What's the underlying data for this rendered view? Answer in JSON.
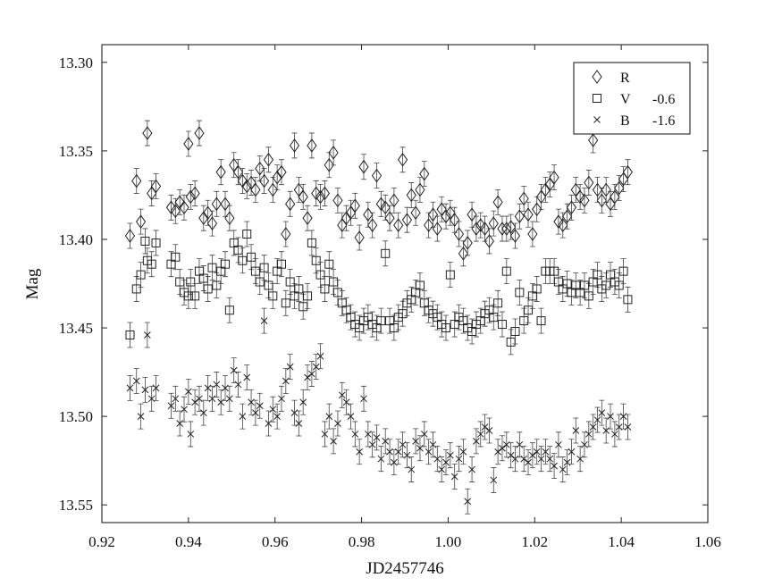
{
  "chart_data": {
    "type": "scatter",
    "xlabel": "JD2457746",
    "ylabel": "Mag",
    "xlim": [
      0.92,
      1.06
    ],
    "ylim": [
      13.56,
      13.29
    ],
    "y_inverted": true,
    "x_ticks": [
      "0.92",
      "0.94",
      "0.96",
      "0.98",
      "1.00",
      "1.02",
      "1.04",
      "1.06"
    ],
    "y_ticks": [
      "13.30",
      "13.35",
      "13.40",
      "13.45",
      "13.50",
      "13.55"
    ],
    "grid": false,
    "legend_position": "top-right",
    "legend": [
      {
        "marker": "diamond",
        "label": "R",
        "offset": ""
      },
      {
        "marker": "square",
        "label": "V",
        "offset": "-0.6"
      },
      {
        "marker": "x",
        "label": "B",
        "offset": "-1.6"
      }
    ],
    "series": [
      {
        "name": "R",
        "marker": "diamond",
        "x": [
          0.9265,
          0.928,
          0.929,
          0.9305,
          0.9315,
          0.9325,
          0.936,
          0.937,
          0.938,
          0.939,
          0.94,
          0.9405,
          0.9415,
          0.9425,
          0.9435,
          0.9445,
          0.9455,
          0.9465,
          0.9475,
          0.9485,
          0.9495,
          0.9505,
          0.9515,
          0.9525,
          0.9535,
          0.9545,
          0.9555,
          0.9565,
          0.9575,
          0.9585,
          0.9595,
          0.9605,
          0.9615,
          0.9625,
          0.9635,
          0.9645,
          0.9655,
          0.9665,
          0.9675,
          0.9685,
          0.9695,
          0.9705,
          0.9715,
          0.9725,
          0.9735,
          0.9745,
          0.9755,
          0.9765,
          0.9775,
          0.9785,
          0.9795,
          0.9805,
          0.9815,
          0.9825,
          0.9835,
          0.9845,
          0.9855,
          0.9865,
          0.9875,
          0.9885,
          0.9895,
          0.9905,
          0.9915,
          0.9925,
          0.9935,
          0.9945,
          0.9955,
          0.9965,
          0.9975,
          0.9985,
          0.9995,
          1.0005,
          1.0015,
          1.0025,
          1.0035,
          1.0045,
          1.0055,
          1.0065,
          1.0075,
          1.0085,
          1.0095,
          1.0105,
          1.0115,
          1.0125,
          1.0135,
          1.0145,
          1.0155,
          1.0165,
          1.0175,
          1.0185,
          1.0195,
          1.0205,
          1.0215,
          1.0225,
          1.0235,
          1.0245,
          1.0255,
          1.0265,
          1.0275,
          1.0285,
          1.0295,
          1.0305,
          1.0315,
          1.0325,
          1.0335,
          1.0345,
          1.0355,
          1.0365,
          1.0375,
          1.0385,
          1.0395,
          1.0405,
          1.0415
        ],
        "y": [
          13.398,
          13.367,
          13.39,
          13.34,
          13.374,
          13.37,
          13.382,
          13.384,
          13.379,
          13.382,
          13.346,
          13.376,
          13.374,
          13.34,
          13.388,
          13.385,
          13.391,
          13.38,
          13.362,
          13.38,
          13.388,
          13.358,
          13.362,
          13.367,
          13.37,
          13.368,
          13.372,
          13.36,
          13.367,
          13.355,
          13.372,
          13.365,
          13.362,
          13.397,
          13.38,
          13.347,
          13.372,
          13.376,
          13.388,
          13.347,
          13.374,
          13.376,
          13.374,
          13.358,
          13.351,
          13.378,
          13.392,
          13.388,
          13.385,
          13.381,
          13.399,
          13.359,
          13.386,
          13.392,
          13.364,
          13.38,
          13.382,
          13.388,
          13.378,
          13.392,
          13.355,
          13.389,
          13.375,
          13.385,
          13.372,
          13.363,
          13.392,
          13.386,
          13.394,
          13.383,
          13.387,
          13.385,
          13.389,
          13.397,
          13.408,
          13.402,
          13.386,
          13.394,
          13.392,
          13.394,
          13.401,
          13.391,
          13.379,
          13.394,
          13.394,
          13.393,
          13.398,
          13.387,
          13.377,
          13.386,
          13.397,
          13.383,
          13.376,
          13.372,
          13.369,
          13.365,
          13.39,
          13.392,
          13.387,
          13.382,
          13.372,
          13.376,
          13.378,
          13.368,
          13.344,
          13.372,
          13.378,
          13.372,
          13.38,
          13.376,
          13.371,
          13.366,
          13.362
        ]
      },
      {
        "name": "V",
        "marker": "square",
        "x": [
          0.9265,
          0.928,
          0.929,
          0.93,
          0.9305,
          0.9315,
          0.9325,
          0.936,
          0.937,
          0.938,
          0.939,
          0.94,
          0.9405,
          0.9415,
          0.9425,
          0.9435,
          0.9445,
          0.9455,
          0.9465,
          0.9475,
          0.9485,
          0.9495,
          0.9505,
          0.9515,
          0.9525,
          0.9535,
          0.9545,
          0.9555,
          0.9565,
          0.9575,
          0.9585,
          0.9595,
          0.9605,
          0.9615,
          0.9625,
          0.9635,
          0.9645,
          0.9655,
          0.9665,
          0.9675,
          0.9685,
          0.9695,
          0.9705,
          0.9715,
          0.9725,
          0.9735,
          0.9745,
          0.9755,
          0.9765,
          0.9775,
          0.9785,
          0.9795,
          0.9805,
          0.9815,
          0.9825,
          0.9835,
          0.9845,
          0.9855,
          0.9865,
          0.9875,
          0.9885,
          0.9895,
          0.9905,
          0.9915,
          0.9925,
          0.9935,
          0.9945,
          0.9955,
          0.9965,
          0.9975,
          0.9985,
          0.9995,
          1.0005,
          1.0015,
          1.0025,
          1.0035,
          1.0045,
          1.0055,
          1.0065,
          1.0075,
          1.0085,
          1.0095,
          1.0105,
          1.0115,
          1.0125,
          1.0135,
          1.0145,
          1.0155,
          1.0165,
          1.0175,
          1.0185,
          1.0195,
          1.0205,
          1.0215,
          1.0225,
          1.0235,
          1.0245,
          1.0255,
          1.0265,
          1.0275,
          1.0285,
          1.0295,
          1.0305,
          1.0315,
          1.0325,
          1.0335,
          1.0345,
          1.0355,
          1.0365,
          1.0375,
          1.0385,
          1.0395,
          1.0405,
          1.0415
        ],
        "y": [
          13.454,
          13.428,
          13.42,
          13.401,
          13.412,
          13.414,
          13.402,
          13.414,
          13.41,
          13.424,
          13.43,
          13.432,
          13.424,
          13.432,
          13.418,
          13.422,
          13.428,
          13.416,
          13.426,
          13.418,
          13.414,
          13.44,
          13.402,
          13.406,
          13.412,
          13.397,
          13.41,
          13.418,
          13.424,
          13.416,
          13.426,
          13.432,
          13.418,
          13.414,
          13.436,
          13.424,
          13.432,
          13.428,
          13.438,
          13.432,
          13.402,
          13.412,
          13.42,
          13.428,
          13.414,
          13.424,
          13.43,
          13.436,
          13.44,
          13.444,
          13.448,
          13.45,
          13.446,
          13.444,
          13.448,
          13.45,
          13.446,
          13.408,
          13.446,
          13.45,
          13.444,
          13.442,
          13.436,
          13.434,
          13.43,
          13.426,
          13.436,
          13.44,
          13.442,
          13.444,
          13.448,
          13.45,
          13.42,
          13.448,
          13.444,
          13.446,
          13.45,
          13.452,
          13.448,
          13.446,
          13.442,
          13.44,
          13.444,
          13.436,
          13.448,
          13.418,
          13.458,
          13.452,
          13.43,
          13.446,
          13.44,
          13.432,
          13.428,
          13.446,
          13.418,
          13.418,
          13.418,
          13.424,
          13.428,
          13.425,
          13.43,
          13.426,
          13.43,
          13.426,
          13.432,
          13.424,
          13.42,
          13.428,
          13.426,
          13.42,
          13.424,
          13.426,
          13.418,
          13.434
        ]
      },
      {
        "name": "B",
        "marker": "x",
        "x": [
          0.9265,
          0.928,
          0.929,
          0.93,
          0.9305,
          0.9315,
          0.9325,
          0.936,
          0.937,
          0.938,
          0.939,
          0.94,
          0.9405,
          0.9415,
          0.9425,
          0.9435,
          0.9445,
          0.9455,
          0.9465,
          0.9475,
          0.9485,
          0.9495,
          0.9505,
          0.9515,
          0.9525,
          0.9535,
          0.9545,
          0.9555,
          0.9565,
          0.9575,
          0.9585,
          0.9595,
          0.9605,
          0.9615,
          0.9625,
          0.9635,
          0.9645,
          0.9655,
          0.9665,
          0.9675,
          0.9685,
          0.9695,
          0.9705,
          0.9715,
          0.9725,
          0.9735,
          0.9745,
          0.9755,
          0.9765,
          0.9775,
          0.9785,
          0.9795,
          0.9805,
          0.9815,
          0.9825,
          0.9835,
          0.9845,
          0.9855,
          0.9865,
          0.9875,
          0.9885,
          0.9895,
          0.9905,
          0.9915,
          0.9925,
          0.9935,
          0.9945,
          0.9955,
          0.9965,
          0.9975,
          0.9985,
          0.9995,
          1.0005,
          1.0015,
          1.0025,
          1.0035,
          1.0045,
          1.0055,
          1.0065,
          1.0075,
          1.0085,
          1.0095,
          1.0105,
          1.0115,
          1.0125,
          1.0135,
          1.0145,
          1.0155,
          1.0165,
          1.0175,
          1.0185,
          1.0195,
          1.0205,
          1.0215,
          1.0225,
          1.0235,
          1.0245,
          1.0255,
          1.0265,
          1.0275,
          1.0285,
          1.0295,
          1.0305,
          1.0315,
          1.0325,
          1.0335,
          1.0345,
          1.0355,
          1.0365,
          1.0375,
          1.0385,
          1.0395,
          1.0405,
          1.0415
        ],
        "y": [
          13.484,
          13.48,
          13.5,
          13.485,
          13.454,
          13.49,
          13.484,
          13.494,
          13.49,
          13.504,
          13.496,
          13.486,
          13.51,
          13.492,
          13.49,
          13.498,
          13.484,
          13.49,
          13.482,
          13.492,
          13.484,
          13.49,
          13.474,
          13.482,
          13.5,
          13.478,
          13.492,
          13.498,
          13.494,
          13.446,
          13.504,
          13.496,
          13.5,
          13.49,
          13.48,
          13.472,
          13.498,
          13.504,
          13.492,
          13.478,
          13.476,
          13.472,
          13.466,
          13.51,
          13.5,
          13.514,
          13.504,
          13.488,
          13.492,
          13.5,
          13.51,
          13.52,
          13.49,
          13.51,
          13.516,
          13.512,
          13.524,
          13.514,
          13.52,
          13.526,
          13.52,
          13.516,
          13.522,
          13.53,
          13.514,
          13.518,
          13.51,
          13.52,
          13.516,
          13.524,
          13.53,
          13.526,
          13.522,
          13.534,
          13.524,
          13.52,
          13.548,
          13.53,
          13.514,
          13.51,
          13.506,
          13.508,
          13.536,
          13.52,
          13.518,
          13.516,
          13.522,
          13.524,
          13.516,
          13.524,
          13.526,
          13.522,
          13.52,
          13.524,
          13.52,
          13.524,
          13.528,
          13.516,
          13.53,
          13.526,
          13.52,
          13.508,
          13.524,
          13.516,
          13.51,
          13.506,
          13.502,
          13.498,
          13.508,
          13.5,
          13.51,
          13.506,
          13.5,
          13.506
        ]
      }
    ]
  }
}
